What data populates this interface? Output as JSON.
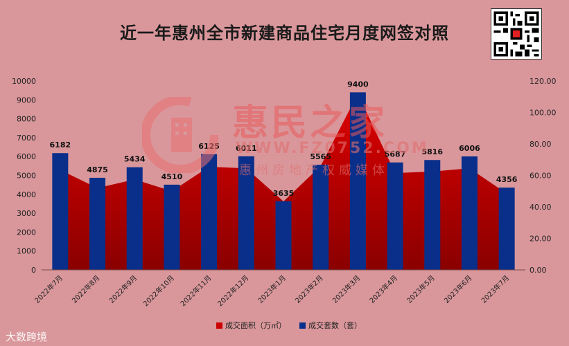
{
  "title": "近一年惠州全市新建商品住宅月度网签对照",
  "watermark": {
    "brand": "惠民之家",
    "url": "WWW.FZ0752.COM",
    "slogan": "惠州房地产权威媒体"
  },
  "footer_logo": "大数跨境",
  "chart_data": {
    "type": "bar",
    "categories": [
      "2022年7月",
      "2022年8月",
      "2022年9月",
      "2022年10月",
      "2022年11月",
      "2022年12月",
      "2023年1月",
      "2023年2月",
      "2023年3月",
      "2023年4月",
      "2023年5月",
      "2023年6月",
      "2023年7月"
    ],
    "series": [
      {
        "name": "成交面积（万㎡）",
        "type": "area",
        "axis": "right",
        "color": "#cc0000",
        "values": [
          63.5,
          52.0,
          57.5,
          50.0,
          65.5,
          64.5,
          43.5,
          66.0,
          112.0,
          61.5,
          62.5,
          64.5,
          48.5
        ]
      },
      {
        "name": "成交套数（套）",
        "type": "bar",
        "axis": "left",
        "color": "#0a2f8a",
        "values": [
          6182,
          4875,
          5434,
          4510,
          6125,
          6011,
          3635,
          5565,
          9400,
          5687,
          5816,
          6006,
          4356
        ],
        "labels": [
          "6182",
          "4875",
          "5434",
          "4510",
          "6125",
          "6011",
          "3635",
          "5565",
          "9400",
          "5687",
          "5816",
          "6006",
          "4356"
        ]
      }
    ],
    "y_left": {
      "min": 0,
      "max": 10000,
      "ticks": [
        "0",
        "1000",
        "2000",
        "3000",
        "4000",
        "5000",
        "6000",
        "7000",
        "8000",
        "9000",
        "10000"
      ]
    },
    "y_right": {
      "min": 0,
      "max": 120,
      "ticks": [
        "0.00",
        "20.00",
        "40.00",
        "60.00",
        "80.00",
        "100.00",
        "120.00"
      ]
    },
    "grid": false,
    "legend_position": "bottom"
  }
}
